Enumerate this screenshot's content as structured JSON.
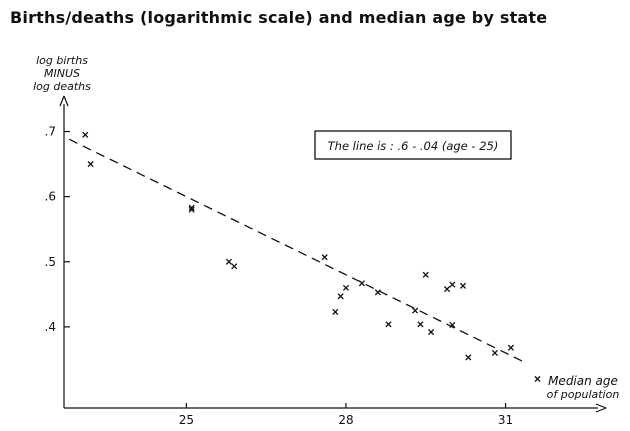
{
  "page": {
    "title": "Births/deaths (logarithmic scale) and median age by state"
  },
  "chart_data": {
    "type": "scatter",
    "title": "Births/deaths (logarithmic scale) and median age by state",
    "ylabel_lines": [
      "log births",
      "MINUS",
      "log deaths"
    ],
    "xlabel_lines": [
      "Median age",
      "of population"
    ],
    "annotation": "The line is : .6 - .04 (age - 25)",
    "xlim": [
      22.7,
      32.7
    ],
    "ylim": [
      0.3,
      0.73
    ],
    "x_ticks": [
      25,
      28,
      31
    ],
    "y_ticks": [
      0.4,
      0.5,
      0.6,
      0.7
    ],
    "y_tick_labels": [
      ".4",
      ".5",
      ".6",
      ".7"
    ],
    "grid": false,
    "fit_line": {
      "intercept": 0.6,
      "slope": -0.04,
      "center": 25,
      "x_range": [
        22.8,
        31.4
      ],
      "style": "dashed"
    },
    "points": [
      {
        "x": 23.1,
        "y": 0.695
      },
      {
        "x": 23.2,
        "y": 0.65
      },
      {
        "x": 25.1,
        "y": 0.58
      },
      {
        "x": 25.1,
        "y": 0.583
      },
      {
        "x": 25.8,
        "y": 0.5
      },
      {
        "x": 25.9,
        "y": 0.493
      },
      {
        "x": 27.6,
        "y": 0.507
      },
      {
        "x": 27.8,
        "y": 0.423
      },
      {
        "x": 27.9,
        "y": 0.447
      },
      {
        "x": 28.0,
        "y": 0.46
      },
      {
        "x": 28.3,
        "y": 0.467
      },
      {
        "x": 28.6,
        "y": 0.453
      },
      {
        "x": 28.8,
        "y": 0.404
      },
      {
        "x": 29.3,
        "y": 0.425
      },
      {
        "x": 29.4,
        "y": 0.404
      },
      {
        "x": 29.5,
        "y": 0.48
      },
      {
        "x": 29.6,
        "y": 0.392
      },
      {
        "x": 29.9,
        "y": 0.458
      },
      {
        "x": 30.0,
        "y": 0.403
      },
      {
        "x": 30.0,
        "y": 0.465
      },
      {
        "x": 30.2,
        "y": 0.463
      },
      {
        "x": 30.3,
        "y": 0.353
      },
      {
        "x": 30.8,
        "y": 0.36
      },
      {
        "x": 31.1,
        "y": 0.368
      },
      {
        "x": 31.6,
        "y": 0.32
      }
    ],
    "marker": "x",
    "color": "#111111"
  }
}
